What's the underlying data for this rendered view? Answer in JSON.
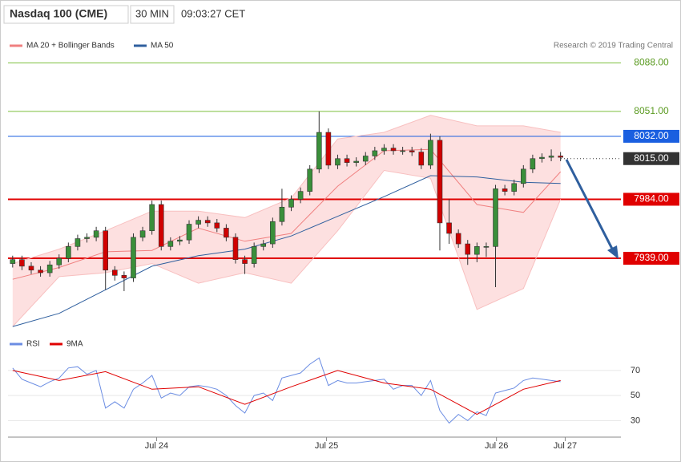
{
  "header": {
    "title": "Nasdaq 100 (CME)",
    "interval": "30 MIN",
    "time": "09:03:27 CET"
  },
  "chart_data": [
    {
      "type": "candlestick",
      "source": "Research © 2019 Trading Central",
      "xlim": [
        -0.5,
        65.5
      ],
      "ylim": [
        7884,
        8098
      ],
      "yticks": [
        {
          "value": 8088,
          "label": "8088.00"
        },
        {
          "value": 8051,
          "label": "8051.00"
        },
        {
          "value": 8032,
          "label": "8032.00"
        },
        {
          "value": 8015,
          "label": "8015.00"
        },
        {
          "value": 7984,
          "label": "7984.00"
        },
        {
          "value": 7939,
          "label": "7939.00"
        }
      ],
      "ytick_colors": [
        "#7cbf3c",
        "#7cbf3c",
        "#1a5fe0",
        "#333333",
        "#e00000",
        "#e00000"
      ],
      "ytick_styles": [
        "text",
        "text",
        "box",
        "box",
        "box",
        "box"
      ],
      "ytick_lines": [
        "solid",
        "solid",
        "solid",
        "dotted",
        "thick",
        "thick"
      ],
      "up_color": "#3a8f3a",
      "down_color": "#d00000",
      "x": [
        0,
        1,
        2,
        3,
        4,
        5,
        6,
        7,
        8,
        9,
        10,
        11,
        12,
        13,
        14,
        15,
        16,
        17,
        18,
        19,
        20,
        21,
        22,
        23,
        24,
        25,
        26,
        27,
        28,
        29,
        30,
        31,
        32,
        33,
        34,
        35,
        36,
        37,
        38,
        39,
        40,
        41,
        42,
        43,
        44,
        45,
        46,
        47,
        48,
        49,
        50,
        51,
        52,
        53,
        54,
        55,
        56,
        57,
        58,
        59
      ],
      "open": [
        7935,
        7938,
        7933,
        7930,
        7928,
        7934,
        7939,
        7948,
        7954,
        7955,
        7960,
        7930,
        7926,
        7924,
        7955,
        7960,
        7980,
        7948,
        7952,
        7953,
        7965,
        7968,
        7966,
        7962,
        7955,
        7938,
        7935,
        7948,
        7950,
        7967,
        7978,
        7984,
        7990,
        8007,
        8035,
        8010,
        8015,
        8012,
        8013,
        8017,
        8021,
        8023,
        8021,
        8021,
        8020,
        8010,
        8029,
        7966,
        7958,
        7950,
        7942,
        7948,
        7948,
        7992,
        7990,
        7996,
        8007,
        8015,
        8016,
        8017
      ],
      "high": [
        7941,
        7941,
        7936,
        7933,
        7937,
        7942,
        7951,
        7957,
        7958,
        7963,
        7963,
        7933,
        7929,
        7958,
        7963,
        7983,
        7983,
        7955,
        7956,
        7968,
        7971,
        7971,
        7969,
        7965,
        7958,
        7941,
        7951,
        7953,
        7970,
        7992,
        7987,
        7993,
        8010,
        8051,
        8038,
        8018,
        8018,
        8016,
        8020,
        8024,
        8026,
        8026,
        8024,
        8024,
        8023,
        8034,
        8032,
        7984,
        7961,
        7953,
        7951,
        7951,
        7995,
        7995,
        7999,
        8010,
        8018,
        8019,
        8022,
        8020
      ],
      "low": [
        7932,
        7930,
        7927,
        7925,
        7925,
        7931,
        7936,
        7945,
        7951,
        7952,
        7915,
        7922,
        7914,
        7921,
        7952,
        7957,
        7945,
        7945,
        7949,
        7950,
        7962,
        7963,
        7959,
        7952,
        7935,
        7927,
        7932,
        7945,
        7947,
        7964,
        7975,
        7981,
        7987,
        8004,
        8007,
        8007,
        8009,
        8009,
        8010,
        8014,
        8018,
        8018,
        8018,
        8017,
        8007,
        8007,
        7945,
        7950,
        7947,
        7934,
        7936,
        7940,
        7917,
        7987,
        7987,
        7993,
        8004,
        8012,
        8013,
        8013
      ],
      "close": [
        7938,
        7933,
        7930,
        7928,
        7934,
        7939,
        7948,
        7954,
        7955,
        7960,
        7930,
        7926,
        7924,
        7955,
        7960,
        7980,
        7948,
        7952,
        7953,
        7965,
        7968,
        7966,
        7962,
        7955,
        7938,
        7935,
        7948,
        7950,
        7967,
        7978,
        7984,
        7990,
        8007,
        8035,
        8010,
        8015,
        8012,
        8013,
        8017,
        8021,
        8023,
        8021,
        8021,
        8020,
        8010,
        8029,
        7966,
        7958,
        7950,
        7942,
        7948,
        7948,
        7992,
        7990,
        7996,
        8007,
        8015,
        8016,
        8017,
        8016
      ],
      "series": [
        {
          "name": "MA 20 + Bollinger Bands",
          "color": "#f08080",
          "band_color": "#fde0e0",
          "x": [
            0,
            5,
            10,
            15,
            20,
            25,
            30,
            35,
            40,
            45,
            50,
            55,
            59
          ],
          "values": [
            7923,
            7932,
            7944,
            7945,
            7962,
            7952,
            7958,
            7994,
            8021,
            8022,
            7980,
            7974,
            8005
          ],
          "upper": [
            7935,
            7946,
            7960,
            7975,
            7975,
            7970,
            7985,
            8030,
            8035,
            8048,
            8040,
            8040,
            8035
          ],
          "lower": [
            7887,
            7925,
            7928,
            7935,
            7920,
            7928,
            7920,
            7960,
            8006,
            8000,
            7900,
            7916,
            7984
          ]
        },
        {
          "name": "MA 50",
          "color": "#2f5f9e",
          "x": [
            0,
            5,
            10,
            15,
            20,
            25,
            30,
            35,
            40,
            45,
            50,
            55,
            59
          ],
          "values": [
            7887,
            7897,
            7915,
            7933,
            7941,
            7946,
            7956,
            7971,
            7986,
            8002,
            8001,
            7997,
            7996
          ]
        }
      ]
    },
    {
      "type": "line",
      "xlim": [
        -0.5,
        65.5
      ],
      "ylim": [
        20,
        84
      ],
      "yticks": [
        70,
        50,
        30
      ],
      "xticks": [
        {
          "value": 15.5,
          "label": "Jul 24"
        },
        {
          "value": 33.8,
          "label": "Jul 25"
        },
        {
          "value": 52.1,
          "label": "Jul 26"
        },
        {
          "value": 59.5,
          "label": "Jul 27"
        }
      ],
      "series": [
        {
          "name": "RSI",
          "color": "#6b8de3",
          "x": [
            0,
            1,
            2,
            3,
            4,
            5,
            6,
            7,
            8,
            9,
            10,
            11,
            12,
            13,
            14,
            15,
            16,
            17,
            18,
            19,
            20,
            21,
            22,
            23,
            24,
            25,
            26,
            27,
            28,
            29,
            30,
            31,
            32,
            33,
            34,
            35,
            36,
            37,
            38,
            39,
            40,
            41,
            42,
            43,
            44,
            45,
            46,
            47,
            48,
            49,
            50,
            51,
            52,
            53,
            54,
            55,
            56,
            57,
            58,
            59
          ],
          "values": [
            72,
            63,
            60,
            57,
            61,
            64,
            72,
            73,
            67,
            70,
            40,
            45,
            40,
            55,
            60,
            66,
            48,
            52,
            50,
            57,
            58,
            57,
            55,
            50,
            42,
            36,
            50,
            52,
            46,
            64,
            66,
            68,
            75,
            80,
            58,
            62,
            60,
            60,
            61,
            62,
            63,
            55,
            58,
            58,
            50,
            62,
            38,
            28,
            35,
            30,
            37,
            34,
            52,
            54,
            56,
            62,
            64,
            63,
            62,
            61
          ]
        },
        {
          "name": "9MA",
          "color": "#e00000",
          "x": [
            0,
            5,
            10,
            15,
            20,
            25,
            30,
            35,
            40,
            45,
            50,
            55,
            59
          ],
          "values": [
            70,
            62,
            69,
            55,
            57,
            43,
            57,
            70,
            60,
            55,
            35,
            55,
            62
          ]
        }
      ]
    }
  ]
}
